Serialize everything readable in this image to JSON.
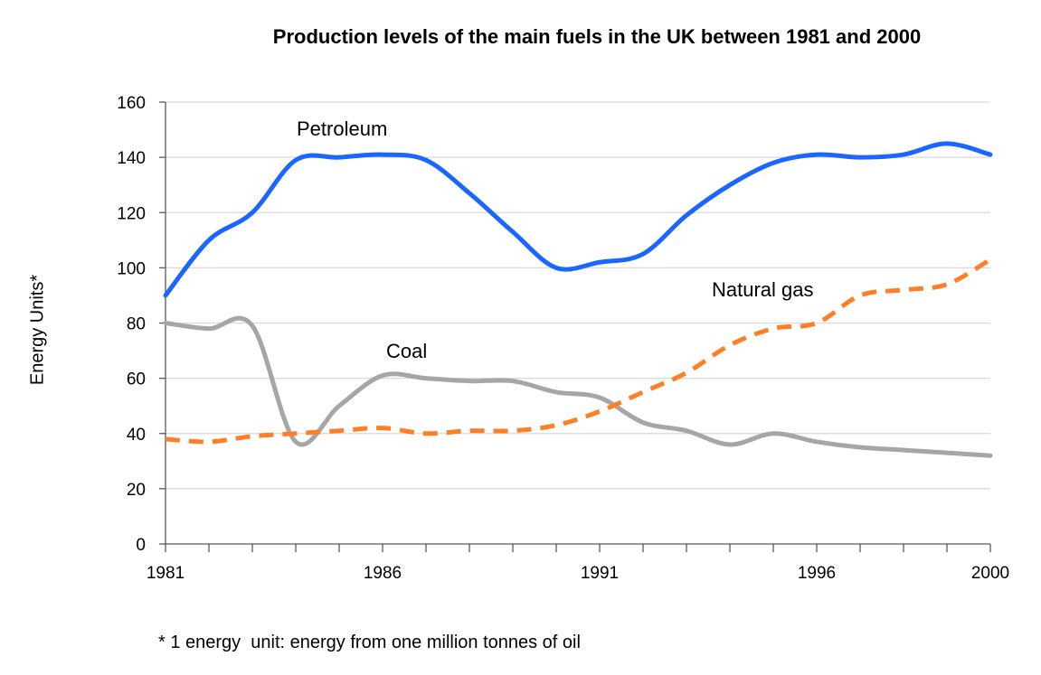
{
  "chart_data": {
    "type": "line",
    "title": "Production levels of the main fuels in the UK between 1981 and 2000",
    "xlabel": "",
    "ylabel": "Energy Units*",
    "footnote": "* 1 energy  unit: energy from one million tonnes of oil",
    "x": [
      1981,
      1982,
      1983,
      1984,
      1985,
      1986,
      1987,
      1988,
      1989,
      1990,
      1991,
      1992,
      1993,
      1994,
      1995,
      1996,
      1997,
      1998,
      1999,
      2000
    ],
    "x_tick_labels": [
      "1981",
      "1986",
      "1991",
      "1996",
      "2000"
    ],
    "y_tick_labels": [
      "0",
      "20",
      "40",
      "60",
      "80",
      "100",
      "120",
      "140",
      "160"
    ],
    "xlim": [
      1981,
      2000
    ],
    "ylim": [
      0,
      160
    ],
    "grid": "horizontal",
    "series": [
      {
        "name": "Petroleum",
        "color": "#1a66ff",
        "dash": false,
        "values": [
          90,
          110,
          120,
          139,
          140,
          141,
          139,
          127,
          113,
          100,
          102,
          105,
          119,
          130,
          138,
          141,
          140,
          141,
          145,
          141
        ]
      },
      {
        "name": "Natural gas",
        "color": "#ff7f27",
        "dash": true,
        "values": [
          38,
          37,
          39,
          40,
          41,
          42,
          40,
          41,
          41,
          43,
          48,
          55,
          62,
          72,
          78,
          80,
          90,
          92,
          94,
          103
        ]
      },
      {
        "name": "Coal",
        "color": "#a6a6a6",
        "dash": false,
        "values": [
          80,
          78,
          79,
          37,
          50,
          61,
          60,
          59,
          59,
          55,
          53,
          44,
          41,
          36,
          40,
          37,
          35,
          34,
          33,
          32
        ]
      }
    ]
  }
}
